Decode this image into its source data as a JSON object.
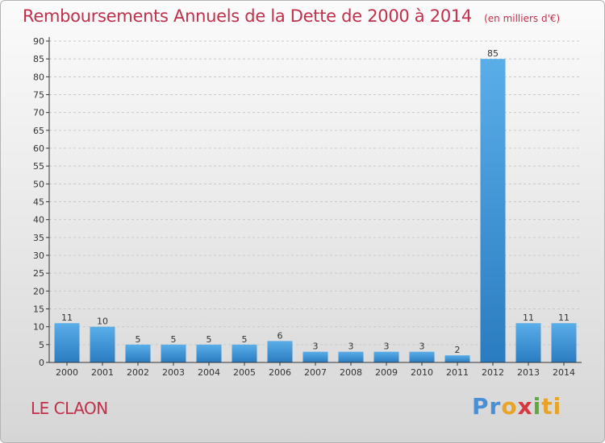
{
  "header": {
    "title": "Remboursements Annuels de la Dette de 2000 à 2014",
    "subtitle": "(en milliers d'€)"
  },
  "footer": {
    "commune": "LE CLAON",
    "brand": {
      "p1": "Pr",
      "p2": "o",
      "p3": "x",
      "p4": "i",
      "p5": "ti"
    }
  },
  "colors": {
    "title": "#c0304a",
    "bar_light": "#5aaee8",
    "bar_dark": "#2a7cc0",
    "grid": "#c8c8c8",
    "axis": "#333333"
  },
  "chart_data": {
    "type": "bar",
    "title": "Remboursements Annuels de la Dette de 2000 à 2014",
    "subtitle": "(en milliers d'€)",
    "xlabel": "",
    "ylabel": "",
    "categories": [
      "2000",
      "2001",
      "2002",
      "2003",
      "2004",
      "2005",
      "2006",
      "2007",
      "2008",
      "2009",
      "2010",
      "2011",
      "2012",
      "2013",
      "2014"
    ],
    "values": [
      11,
      10,
      5,
      5,
      5,
      5,
      6,
      3,
      3,
      3,
      3,
      2,
      85,
      11,
      11
    ],
    "ylim": [
      0,
      90
    ],
    "yticks": [
      0,
      5,
      10,
      15,
      20,
      25,
      30,
      35,
      40,
      45,
      50,
      55,
      60,
      65,
      70,
      75,
      80,
      85,
      90
    ],
    "grid": true,
    "data_labels": true,
    "legend": "none"
  }
}
